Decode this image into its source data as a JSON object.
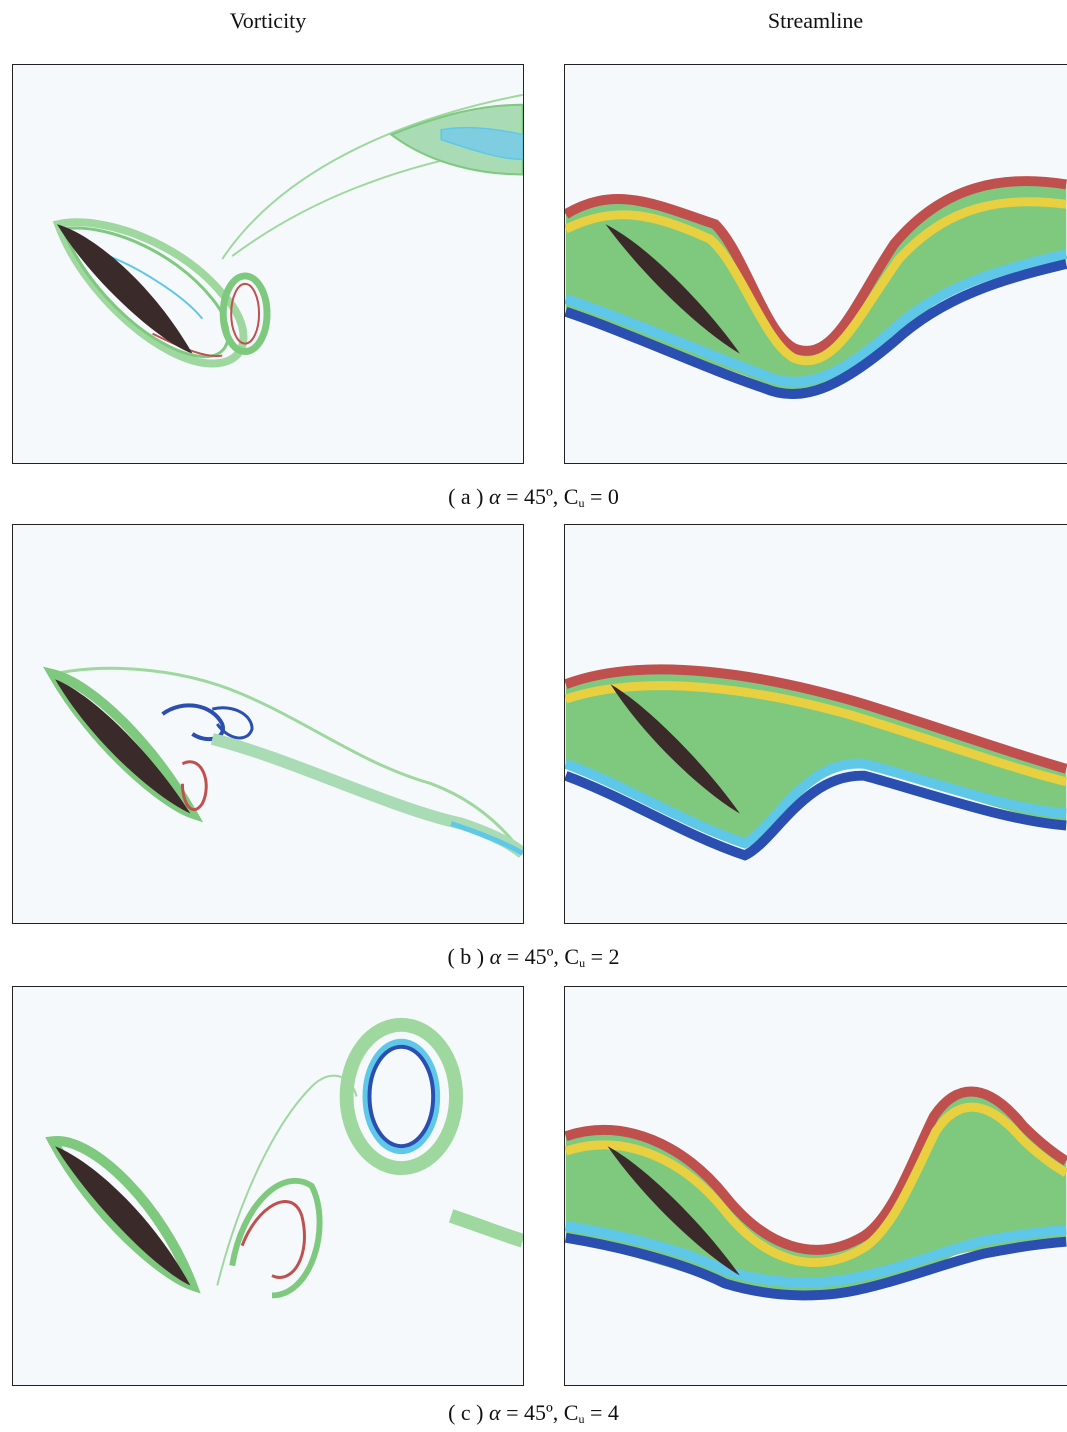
{
  "headers": {
    "left": "Vorticity",
    "right": "Streamline"
  },
  "rows": [
    {
      "caption": {
        "prefix": "( a )",
        "alpha_symbol": "α",
        "alpha_value": "= 45º,",
        "cu_base": "C",
        "cu_sub": "u",
        "cu_value": "= 0"
      }
    },
    {
      "caption": {
        "prefix": "( b )",
        "alpha_symbol": "α",
        "alpha_value": "= 45º,",
        "cu_base": "C",
        "cu_sub": "u",
        "cu_value": "= 2"
      }
    },
    {
      "caption": {
        "prefix": "( c )",
        "alpha_symbol": "α",
        "alpha_value": "= 45º,",
        "cu_base": "C",
        "cu_sub": "u",
        "cu_value": "= 4"
      }
    }
  ],
  "colors": {
    "background": "#f6f9fc",
    "airfoil": "#3a2a2a",
    "contour_green": "#7fc97f",
    "contour_cyan": "#5fc8e8",
    "contour_blue": "#2a4fb0",
    "contour_red": "#c0504d",
    "contour_yellow": "#e8d040",
    "contour_orange": "#d98a3a"
  }
}
